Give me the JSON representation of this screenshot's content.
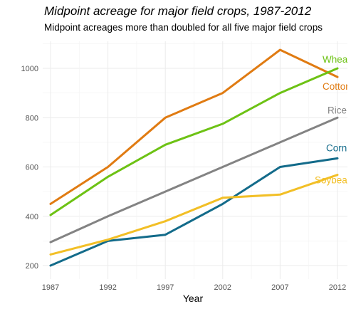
{
  "chart_data": {
    "type": "line",
    "title": "Midpoint acreage for major field crops, 1987-2012",
    "subtitle": "Midpoint acreages more than doubled for all five major field crops",
    "xlabel": "Year",
    "ylabel": "",
    "x": [
      1987,
      1992,
      1997,
      2002,
      2007,
      2012
    ],
    "xticks": [
      "1987",
      "1992",
      "1997",
      "2002",
      "2007",
      "2012"
    ],
    "yticks": [
      200,
      400,
      600,
      800,
      1000
    ],
    "ylim": [
      180,
      1110
    ],
    "xlim": [
      1987,
      2012.3
    ],
    "grid": true,
    "series": [
      {
        "name": "Cotton",
        "color": "#e07b12",
        "values": [
          450,
          600,
          800,
          900,
          1075,
          965
        ]
      },
      {
        "name": "Wheat",
        "color": "#6dc214",
        "values": [
          405,
          560,
          690,
          775,
          900,
          1000
        ]
      },
      {
        "name": "Rice",
        "color": "#838383",
        "values": [
          295,
          400,
          500,
          600,
          700,
          800
        ]
      },
      {
        "name": "Corn",
        "color": "#136b8a",
        "values": [
          200,
          300,
          325,
          450,
          600,
          635
        ]
      },
      {
        "name": "Soybeans",
        "color": "#f2bf26",
        "values": [
          245,
          305,
          380,
          475,
          488,
          568
        ]
      }
    ]
  }
}
